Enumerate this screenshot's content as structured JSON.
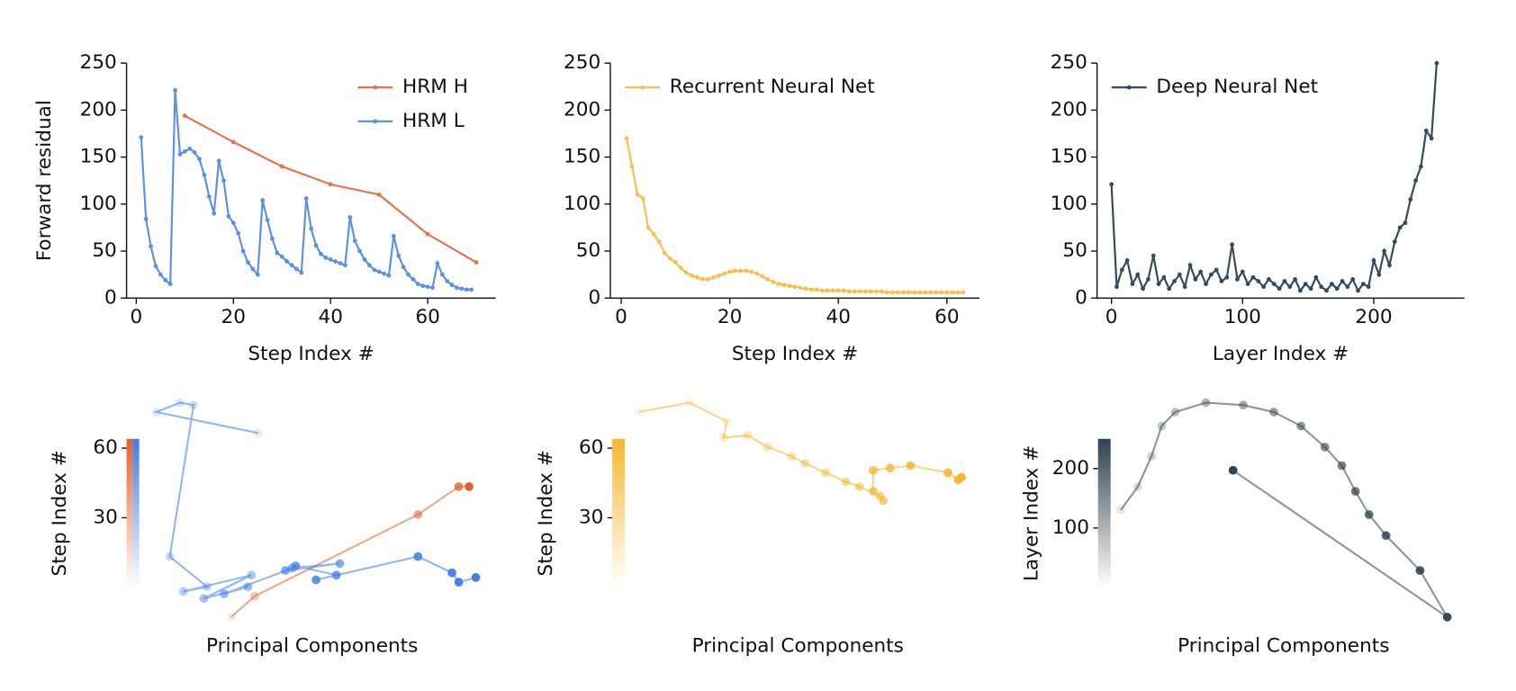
{
  "chart_data": [
    {
      "type": "line",
      "xlabel": "Step Index #",
      "ylabel": "Forward residual",
      "xlim": [
        -2,
        74
      ],
      "ylim": [
        0,
        250
      ],
      "xticks": [
        0,
        20,
        40,
        60
      ],
      "yticks": [
        0,
        50,
        100,
        150,
        200,
        250
      ],
      "legend": "upper right",
      "series": [
        {
          "name": "HRM H",
          "color": "#e8704a",
          "x": [
            10,
            20,
            30,
            40,
            50,
            60,
            70
          ],
          "values": [
            194,
            166,
            140,
            121,
            110,
            68,
            38
          ]
        },
        {
          "name": "HRM L",
          "color": "#5b8fe8",
          "x": [
            1,
            2,
            3,
            4,
            5,
            6,
            7,
            8,
            9,
            10,
            11,
            12,
            13,
            14,
            15,
            16,
            17,
            18,
            19,
            20,
            21,
            22,
            23,
            24,
            25,
            26,
            27,
            28,
            29,
            30,
            31,
            32,
            33,
            34,
            35,
            36,
            37,
            38,
            39,
            40,
            41,
            42,
            43,
            44,
            45,
            46,
            47,
            48,
            49,
            50,
            51,
            52,
            53,
            54,
            55,
            56,
            57,
            58,
            59,
            60,
            61,
            62,
            63,
            64,
            65,
            66,
            67,
            68,
            69
          ],
          "values": [
            171,
            84,
            55,
            34,
            25,
            19,
            15,
            221,
            153,
            156,
            159,
            155,
            148,
            131,
            108,
            90,
            146,
            125,
            87,
            80,
            69,
            50,
            38,
            31,
            25,
            104,
            83,
            63,
            48,
            44,
            39,
            35,
            31,
            27,
            106,
            74,
            56,
            47,
            43,
            41,
            39,
            37,
            35,
            86,
            61,
            50,
            41,
            35,
            30,
            28,
            26,
            24,
            66,
            45,
            33,
            25,
            20,
            15,
            13,
            12,
            11,
            37,
            25,
            18,
            14,
            11,
            10,
            9,
            9
          ]
        }
      ]
    },
    {
      "type": "line",
      "xlabel": "Step Index #",
      "xlim": [
        -2,
        66
      ],
      "ylim": [
        0,
        250
      ],
      "xticks": [
        0,
        20,
        40,
        60
      ],
      "yticks": [
        0,
        50,
        100,
        150,
        200,
        250
      ],
      "legend": "upper left",
      "series": [
        {
          "name": "Recurrent Neural Net",
          "color": "#f5c04f",
          "x": [
            1,
            2,
            3,
            4,
            5,
            6,
            7,
            8,
            9,
            10,
            11,
            12,
            13,
            14,
            15,
            16,
            17,
            18,
            19,
            20,
            21,
            22,
            23,
            24,
            25,
            26,
            27,
            28,
            29,
            30,
            31,
            32,
            33,
            34,
            35,
            36,
            37,
            38,
            39,
            40,
            41,
            42,
            43,
            44,
            45,
            46,
            47,
            48,
            49,
            50,
            51,
            52,
            53,
            54,
            55,
            56,
            57,
            58,
            59,
            60,
            61,
            62,
            63
          ],
          "values": [
            170,
            140,
            110,
            106,
            75,
            68,
            60,
            48,
            42,
            38,
            32,
            27,
            24,
            22,
            20,
            20,
            22,
            24,
            26,
            28,
            29,
            29,
            29,
            28,
            26,
            23,
            20,
            17,
            15,
            14,
            13,
            12,
            11,
            10,
            9,
            9,
            8,
            8,
            8,
            8,
            8,
            7,
            7,
            7,
            7,
            7,
            7,
            7,
            6,
            6,
            6,
            6,
            6,
            6,
            6,
            6,
            6,
            6,
            6,
            6,
            6,
            6,
            6
          ]
        }
      ]
    },
    {
      "type": "line",
      "xlabel": "Layer Index #",
      "xlim": [
        -11,
        269
      ],
      "ylim": [
        0,
        250
      ],
      "xticks": [
        0,
        100,
        200
      ],
      "yticks": [
        0,
        50,
        100,
        150,
        200,
        250
      ],
      "legend": "upper left",
      "series": [
        {
          "name": "Deep Neural Net",
          "color": "#34495a",
          "x": [
            0,
            4,
            8,
            12,
            16,
            20,
            24,
            28,
            32,
            36,
            40,
            44,
            48,
            52,
            56,
            60,
            64,
            68,
            72,
            76,
            80,
            84,
            88,
            92,
            96,
            100,
            104,
            108,
            112,
            116,
            120,
            124,
            128,
            132,
            136,
            140,
            144,
            148,
            152,
            156,
            160,
            164,
            168,
            172,
            176,
            180,
            184,
            188,
            192,
            196,
            200,
            204,
            208,
            212,
            216,
            220,
            224,
            228,
            232,
            236,
            240,
            244,
            248
          ],
          "values": [
            121,
            12,
            30,
            40,
            15,
            25,
            10,
            20,
            45,
            15,
            22,
            10,
            18,
            25,
            12,
            35,
            20,
            28,
            15,
            25,
            30,
            18,
            22,
            57,
            20,
            28,
            15,
            22,
            18,
            12,
            20,
            15,
            10,
            18,
            12,
            20,
            8,
            15,
            10,
            22,
            12,
            8,
            15,
            10,
            18,
            12,
            20,
            8,
            15,
            12,
            40,
            25,
            50,
            35,
            60,
            75,
            80,
            105,
            125,
            140,
            178,
            170,
            250
          ]
        }
      ]
    },
    {
      "type": "trajectory",
      "xlabel": "Principal Components",
      "colorbar_label": "Step Index #",
      "xlim": [
        0,
        100
      ],
      "ylim": [
        0,
        100
      ],
      "clim": [
        0,
        64
      ],
      "cticks": [
        30,
        60
      ],
      "series": [
        {
          "color": "#e0622f",
          "x": [
            25,
            32,
            80,
            92,
            95
          ],
          "y": [
            6,
            15,
            50,
            62,
            62
          ]
        },
        {
          "color": "#3d7ee8",
          "x": [
            33,
            3,
            10,
            14,
            7,
            18,
            11,
            31,
            17,
            30,
            23,
            43,
            57,
            41,
            44,
            56,
            50,
            80,
            90,
            92,
            97
          ],
          "y": [
            85,
            94,
            98,
            97,
            32,
            19,
            17,
            24,
            14,
            19,
            16,
            27,
            29,
            26,
            28,
            24,
            22,
            32,
            25,
            21,
            23
          ]
        }
      ]
    },
    {
      "type": "trajectory",
      "xlabel": "Principal Components",
      "colorbar_label": "Step Index #",
      "xlim": [
        0,
        100
      ],
      "ylim": [
        0,
        100
      ],
      "clim": [
        0,
        64
      ],
      "cticks": [
        30,
        60
      ],
      "series": [
        {
          "color": "#f5b731",
          "x": [
            2,
            17,
            28,
            27,
            34,
            40,
            47,
            51,
            57,
            63,
            67,
            73,
            74,
            71,
            71,
            76,
            82,
            93,
            96,
            97
          ],
          "y": [
            94,
            98,
            90,
            83,
            84,
            79,
            75,
            72,
            68,
            64,
            62,
            58,
            56,
            60,
            69,
            70,
            71,
            68,
            65,
            66
          ]
        }
      ]
    },
    {
      "type": "trajectory",
      "xlabel": "Principal Components",
      "colorbar_label": "Layer Index #",
      "xlim": [
        0,
        100
      ],
      "ylim": [
        0,
        100
      ],
      "clim": [
        0,
        250
      ],
      "cticks": [
        100,
        200
      ],
      "series": [
        {
          "color": "#2f4250",
          "x": [
            1,
            6,
            10,
            13,
            17,
            26,
            37,
            46,
            54,
            61,
            66,
            70,
            74,
            79,
            89,
            97,
            34
          ],
          "y": [
            52,
            62,
            75,
            88,
            94,
            98,
            97,
            94,
            88,
            79,
            71,
            60,
            50,
            41,
            26,
            6,
            69
          ]
        }
      ]
    }
  ]
}
